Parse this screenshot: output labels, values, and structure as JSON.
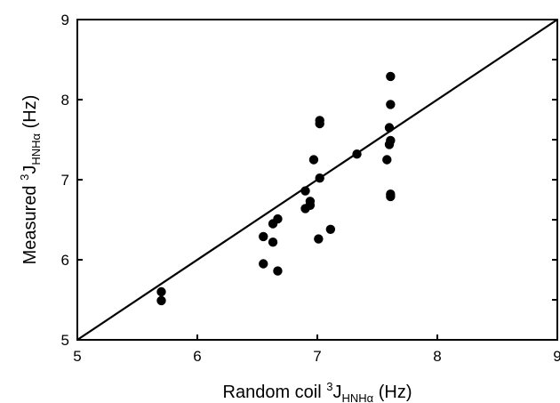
{
  "chart_data": {
    "type": "scatter",
    "title": "",
    "xlabel": {
      "main": "Random coil ",
      "sup": "3",
      "base": "J",
      "sub": "HNHα",
      "unit": " (Hz)"
    },
    "ylabel": {
      "main": "Measured ",
      "sup": "3",
      "base": "J",
      "sub": "HNHα",
      "unit": " (Hz)"
    },
    "xlim": [
      5,
      9
    ],
    "ylim": [
      5,
      9
    ],
    "xticks": [
      "5",
      "6",
      "7",
      "8",
      "9"
    ],
    "yticks": [
      "5",
      "6",
      "7",
      "8",
      "9"
    ],
    "grid": false,
    "legend": "none",
    "reference_line": {
      "from": [
        5,
        5
      ],
      "to": [
        9,
        9
      ]
    },
    "point_color": "#000000",
    "points": [
      {
        "x": 5.7,
        "y": 5.6
      },
      {
        "x": 5.7,
        "y": 5.49
      },
      {
        "x": 6.55,
        "y": 6.29
      },
      {
        "x": 6.55,
        "y": 5.95
      },
      {
        "x": 6.63,
        "y": 6.45
      },
      {
        "x": 6.63,
        "y": 6.22
      },
      {
        "x": 6.67,
        "y": 6.51
      },
      {
        "x": 6.67,
        "y": 5.86
      },
      {
        "x": 6.9,
        "y": 6.86
      },
      {
        "x": 6.9,
        "y": 6.64
      },
      {
        "x": 6.94,
        "y": 6.73
      },
      {
        "x": 6.94,
        "y": 6.68
      },
      {
        "x": 6.97,
        "y": 7.25
      },
      {
        "x": 7.02,
        "y": 7.74
      },
      {
        "x": 7.02,
        "y": 7.7
      },
      {
        "x": 7.02,
        "y": 7.02
      },
      {
        "x": 7.01,
        "y": 6.26
      },
      {
        "x": 7.11,
        "y": 6.38
      },
      {
        "x": 7.33,
        "y": 7.32
      },
      {
        "x": 7.58,
        "y": 7.25
      },
      {
        "x": 7.61,
        "y": 8.29
      },
      {
        "x": 7.61,
        "y": 7.94
      },
      {
        "x": 7.6,
        "y": 7.65
      },
      {
        "x": 7.61,
        "y": 7.49
      },
      {
        "x": 7.6,
        "y": 7.44
      },
      {
        "x": 7.61,
        "y": 6.82
      },
      {
        "x": 7.61,
        "y": 6.79
      }
    ]
  }
}
